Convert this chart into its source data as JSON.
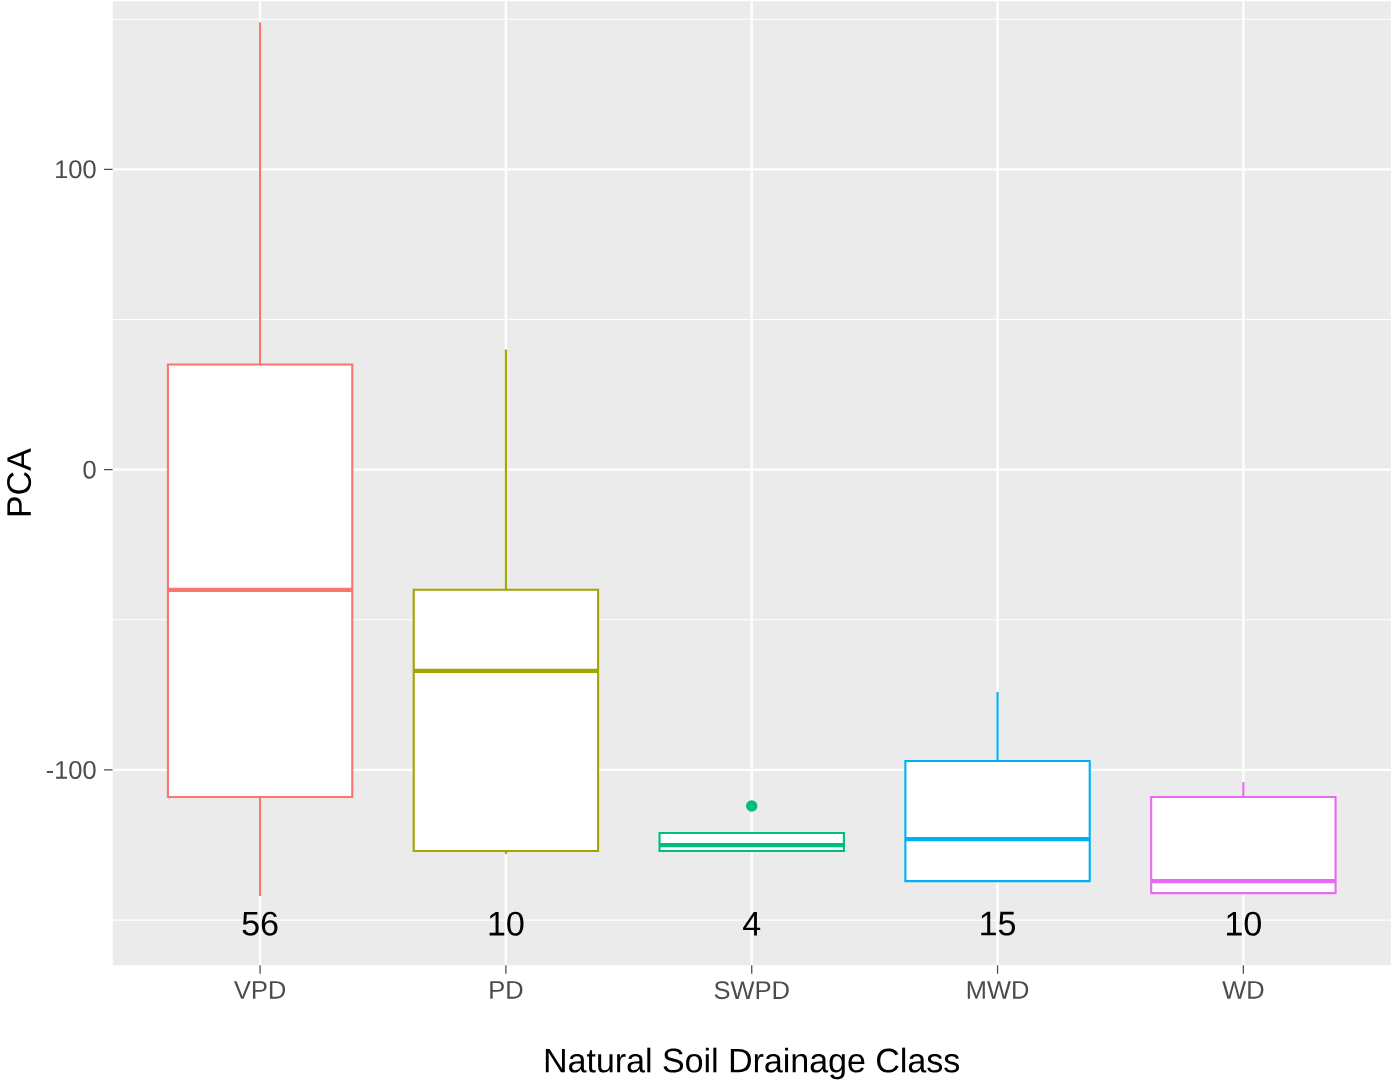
{
  "chart_data": {
    "type": "box",
    "categories": [
      "VPD",
      "PD",
      "SWPD",
      "MWD",
      "WD"
    ],
    "colors": [
      "#f8766d",
      "#a3a500",
      "#00bf7d",
      "#00b0f6",
      "#e76bf3"
    ],
    "boxes": [
      {
        "low": -142,
        "q1": -109,
        "median": -40,
        "q3": 35,
        "high": 149
      },
      {
        "low": -128,
        "q1": -127,
        "median": -67,
        "q3": -40,
        "high": 40
      },
      {
        "low": -127,
        "q1": -127,
        "median": -125,
        "q3": -121,
        "high": -121,
        "outliers": [
          -112
        ]
      },
      {
        "low": -137,
        "q1": -137,
        "median": -123,
        "q3": -97,
        "high": -74
      },
      {
        "low": -141,
        "q1": -141,
        "median": -137,
        "q3": -109,
        "high": -104
      }
    ],
    "xlabel": "Natural Soil Drainage Class",
    "ylabel": "PCA",
    "ylim": [
      -165,
      156
    ],
    "yticks": [
      -100,
      0,
      100
    ],
    "grid": true,
    "annotations": [
      "56",
      "10",
      "4",
      "15",
      "10"
    ]
  }
}
